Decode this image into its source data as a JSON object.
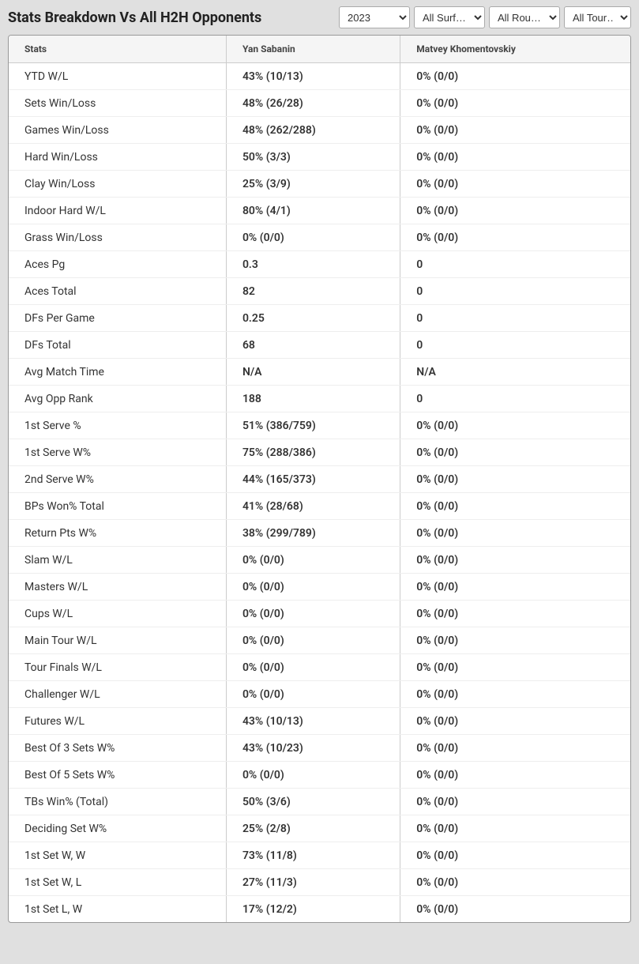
{
  "header": {
    "title": "Stats Breakdown Vs All H2H Opponents"
  },
  "filters": {
    "year": {
      "selected": "2023",
      "options": [
        "2023"
      ]
    },
    "surface": {
      "selected": "All Surf…",
      "options": [
        "All Surf…"
      ]
    },
    "round": {
      "selected": "All Rou…",
      "options": [
        "All Rou…"
      ]
    },
    "tour": {
      "selected": "All Tour…",
      "options": [
        "All Tour…"
      ]
    }
  },
  "table": {
    "columns": [
      "Stats",
      "Yan Sabanin",
      "Matvey Khomentovskiy"
    ],
    "rows": [
      [
        "YTD W/L",
        "43% (10/13)",
        "0% (0/0)"
      ],
      [
        "Sets Win/Loss",
        "48% (26/28)",
        "0% (0/0)"
      ],
      [
        "Games Win/Loss",
        "48% (262/288)",
        "0% (0/0)"
      ],
      [
        "Hard Win/Loss",
        "50% (3/3)",
        "0% (0/0)"
      ],
      [
        "Clay Win/Loss",
        "25% (3/9)",
        "0% (0/0)"
      ],
      [
        "Indoor Hard W/L",
        "80% (4/1)",
        "0% (0/0)"
      ],
      [
        "Grass Win/Loss",
        "0% (0/0)",
        "0% (0/0)"
      ],
      [
        "Aces Pg",
        "0.3",
        "0"
      ],
      [
        "Aces Total",
        "82",
        "0"
      ],
      [
        "DFs Per Game",
        "0.25",
        "0"
      ],
      [
        "DFs Total",
        "68",
        "0"
      ],
      [
        "Avg Match Time",
        "N/A",
        "N/A"
      ],
      [
        "Avg Opp Rank",
        "188",
        "0"
      ],
      [
        "1st Serve %",
        "51% (386/759)",
        "0% (0/0)"
      ],
      [
        "1st Serve W%",
        "75% (288/386)",
        "0% (0/0)"
      ],
      [
        "2nd Serve W%",
        "44% (165/373)",
        "0% (0/0)"
      ],
      [
        "BPs Won% Total",
        "41% (28/68)",
        "0% (0/0)"
      ],
      [
        "Return Pts W%",
        "38% (299/789)",
        "0% (0/0)"
      ],
      [
        "Slam W/L",
        "0% (0/0)",
        "0% (0/0)"
      ],
      [
        "Masters W/L",
        "0% (0/0)",
        "0% (0/0)"
      ],
      [
        "Cups W/L",
        "0% (0/0)",
        "0% (0/0)"
      ],
      [
        "Main Tour W/L",
        "0% (0/0)",
        "0% (0/0)"
      ],
      [
        "Tour Finals W/L",
        "0% (0/0)",
        "0% (0/0)"
      ],
      [
        "Challenger W/L",
        "0% (0/0)",
        "0% (0/0)"
      ],
      [
        "Futures W/L",
        "43% (10/13)",
        "0% (0/0)"
      ],
      [
        "Best Of 3 Sets W%",
        "43% (10/23)",
        "0% (0/0)"
      ],
      [
        "Best Of 5 Sets W%",
        "0% (0/0)",
        "0% (0/0)"
      ],
      [
        "TBs Win% (Total)",
        "50% (3/6)",
        "0% (0/0)"
      ],
      [
        "Deciding Set W%",
        "25% (2/8)",
        "0% (0/0)"
      ],
      [
        "1st Set W, W",
        "73% (11/8)",
        "0% (0/0)"
      ],
      [
        "1st Set W, L",
        "27% (11/3)",
        "0% (0/0)"
      ],
      [
        "1st Set L, W",
        "17% (12/2)",
        "0% (0/0)"
      ]
    ]
  },
  "style": {
    "background_color": "#e0e0e0",
    "table_bg": "#ffffff",
    "header_bg": "#f5f5f5",
    "border_color": "#cccccc",
    "text_color": "#333333",
    "title_color": "#222222",
    "title_fontsize": 18,
    "th_fontsize": 12,
    "td_fontsize": 14
  }
}
